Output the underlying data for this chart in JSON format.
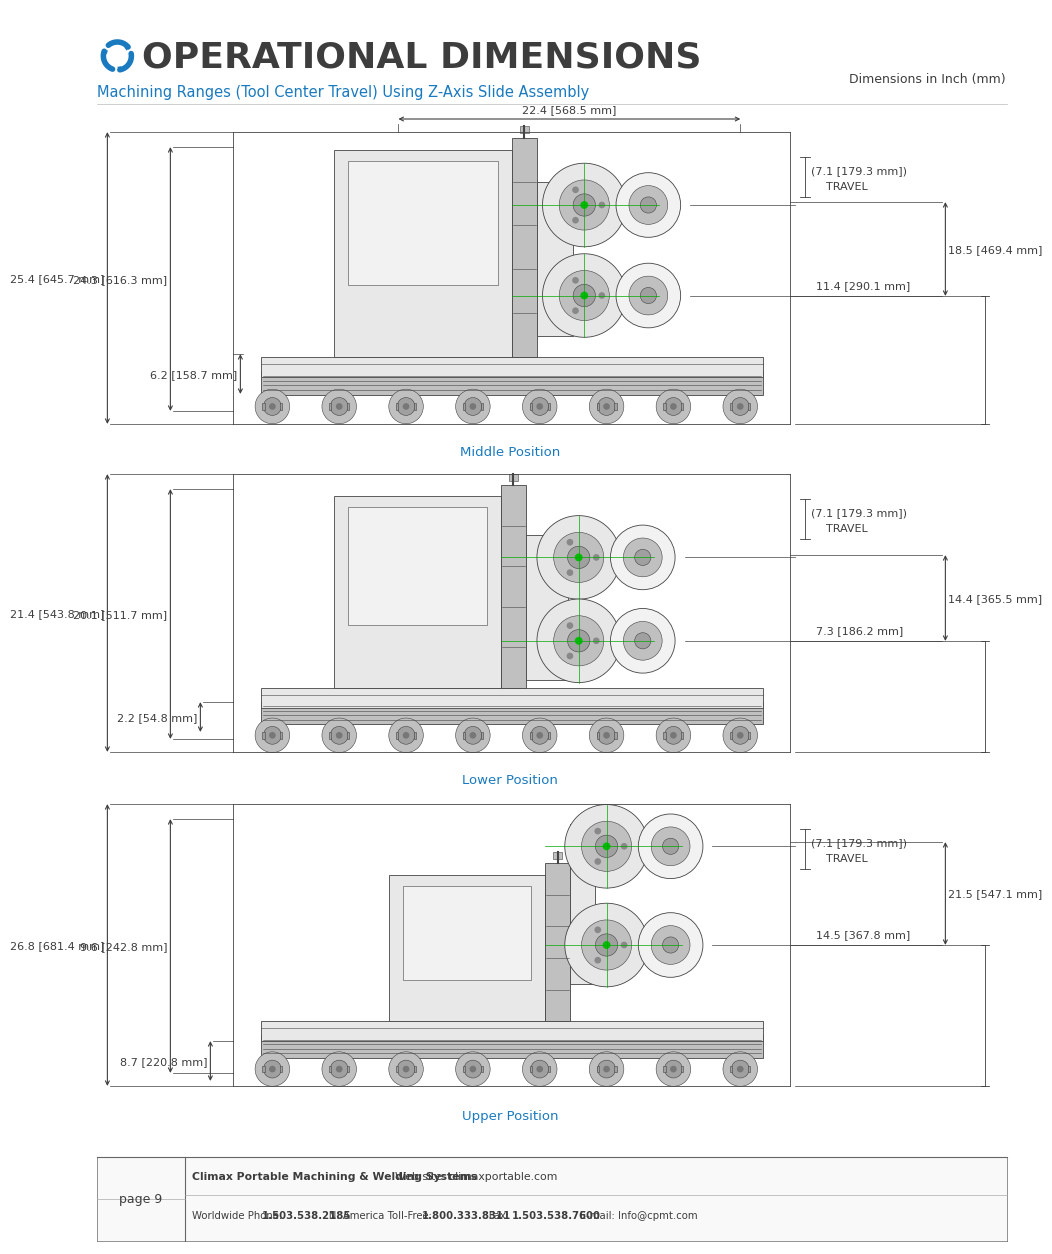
{
  "bg_color": "#ffffff",
  "title": "OPERATIONAL DIMENSIONS",
  "subtitle": "Machining Ranges (Tool Center Travel) Using Z-Axis Slide Assembly",
  "dim_note": "Dimensions in Inch (mm)",
  "title_color": "#3d3d3d",
  "subtitle_color": "#1a7abf",
  "dim_note_color": "#3d3d3d",
  "icon_color": "#1a7abf",
  "section_label_color": "#1a7abf",
  "dim_color": "#3d3d3d",
  "line_color": "#3d3d3d",
  "sections": [
    {
      "label": "Middle Position",
      "top_label": "22.4 [568.5 mm]",
      "left1": "25.4 [645.7 mm]",
      "left2": "24.3 [616.3 mm]",
      "left3": "6.2 [158.7 mm]",
      "travel_line1": "(7.1 [179.3 mm])",
      "travel_line2": "TRAVEL",
      "right1": "18.5 [469.4 mm]",
      "right2": "11.4 [290.1 mm]",
      "layout": "middle"
    },
    {
      "label": "Lower Position",
      "left1": "21.4 [543.8 mm]",
      "left2": "20.1 [511.7 mm]",
      "left3": "2.2 [54.8 mm]",
      "travel_line1": "(7.1 [179.3 mm])",
      "travel_line2": "TRAVEL",
      "right1": "14.4 [365.5 mm]",
      "right2": "7.3 [186.2 mm]",
      "layout": "lower"
    },
    {
      "label": "Upper Position",
      "left1": "26.8 [681.4 mm]",
      "left2": "9.6 [242.8 mm]",
      "left3": "8.7 [220.8 mm]",
      "travel_line1": "(7.1 [179.3 mm])",
      "travel_line2": "TRAVEL",
      "right1": "21.5 [547.1 mm]",
      "right2": "14.5 [367.8 mm]",
      "layout": "upper"
    }
  ],
  "footer_page": "page 9",
  "footer_bold1": "Climax Portable Machining & Welding Systems",
  "footer_normal1": "  Web site: climaxportable.com",
  "footer_pre_phone": "Worldwide Phone: ",
  "footer_phone1": "1.503.538.2185",
  "footer_mid1": "   N. America Toll-Free: ",
  "footer_phone2": "1.800.333.8311",
  "footer_mid2": "   Fax: ",
  "footer_phone3": "1.503.538.7600",
  "footer_end": "   E-mail: Info@cpmt.com"
}
